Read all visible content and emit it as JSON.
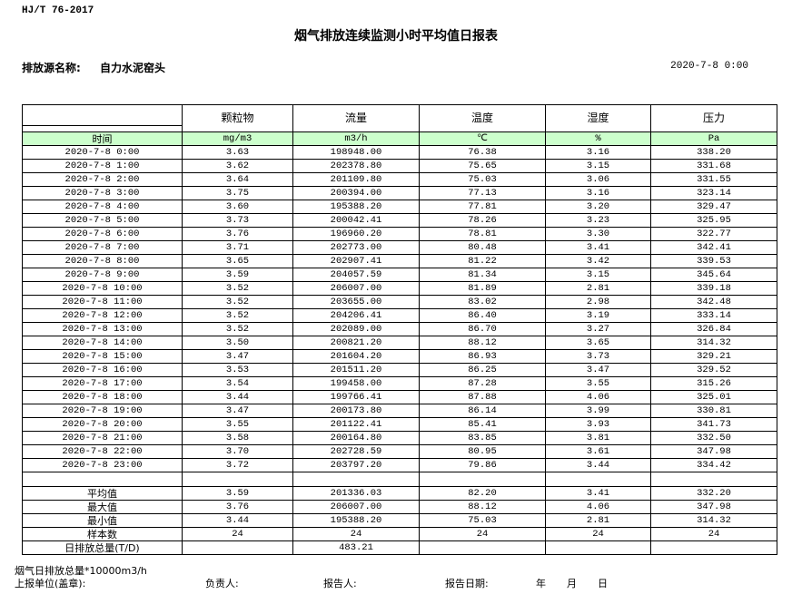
{
  "header": {
    "standard": "HJ/T  76-2017",
    "title": "烟气排放连续监测小时平均值日报表",
    "source_label": "排放源名称:",
    "source_value": "自力水泥窑头",
    "date": "2020-7-8 0:00"
  },
  "table": {
    "columns": [
      "颗粒物",
      "流量",
      "温度",
      "湿度",
      "压力"
    ],
    "time_label": "时间",
    "units": [
      "mg/m3",
      "m3/h",
      "℃",
      "%",
      "Pa"
    ],
    "rows": [
      [
        "2020-7-8 0:00",
        "3.63",
        "198948.00",
        "76.38",
        "3.16",
        "338.20"
      ],
      [
        "2020-7-8 1:00",
        "3.62",
        "202378.80",
        "75.65",
        "3.15",
        "331.68"
      ],
      [
        "2020-7-8 2:00",
        "3.64",
        "201109.80",
        "75.03",
        "3.06",
        "331.55"
      ],
      [
        "2020-7-8 3:00",
        "3.75",
        "200394.00",
        "77.13",
        "3.16",
        "323.14"
      ],
      [
        "2020-7-8 4:00",
        "3.60",
        "195388.20",
        "77.81",
        "3.20",
        "329.47"
      ],
      [
        "2020-7-8 5:00",
        "3.73",
        "200042.41",
        "78.26",
        "3.23",
        "325.95"
      ],
      [
        "2020-7-8 6:00",
        "3.76",
        "196960.20",
        "78.81",
        "3.30",
        "322.77"
      ],
      [
        "2020-7-8 7:00",
        "3.71",
        "202773.00",
        "80.48",
        "3.41",
        "342.41"
      ],
      [
        "2020-7-8 8:00",
        "3.65",
        "202907.41",
        "81.22",
        "3.42",
        "339.53"
      ],
      [
        "2020-7-8 9:00",
        "3.59",
        "204057.59",
        "81.34",
        "3.15",
        "345.64"
      ],
      [
        "2020-7-8 10:00",
        "3.52",
        "206007.00",
        "81.89",
        "2.81",
        "339.18"
      ],
      [
        "2020-7-8 11:00",
        "3.52",
        "203655.00",
        "83.02",
        "2.98",
        "342.48"
      ],
      [
        "2020-7-8 12:00",
        "3.52",
        "204206.41",
        "86.40",
        "3.19",
        "333.14"
      ],
      [
        "2020-7-8 13:00",
        "3.52",
        "202089.00",
        "86.70",
        "3.27",
        "326.84"
      ],
      [
        "2020-7-8 14:00",
        "3.50",
        "200821.20",
        "88.12",
        "3.65",
        "314.32"
      ],
      [
        "2020-7-8 15:00",
        "3.47",
        "201604.20",
        "86.93",
        "3.73",
        "329.21"
      ],
      [
        "2020-7-8 16:00",
        "3.53",
        "201511.20",
        "86.25",
        "3.47",
        "329.52"
      ],
      [
        "2020-7-8 17:00",
        "3.54",
        "199458.00",
        "87.28",
        "3.55",
        "315.26"
      ],
      [
        "2020-7-8 18:00",
        "3.44",
        "199766.41",
        "87.88",
        "4.06",
        "325.01"
      ],
      [
        "2020-7-8 19:00",
        "3.47",
        "200173.80",
        "86.14",
        "3.99",
        "330.81"
      ],
      [
        "2020-7-8 20:00",
        "3.55",
        "201122.41",
        "85.41",
        "3.93",
        "341.73"
      ],
      [
        "2020-7-8 21:00",
        "3.58",
        "200164.80",
        "83.85",
        "3.81",
        "332.50"
      ],
      [
        "2020-7-8 22:00",
        "3.70",
        "202728.59",
        "80.95",
        "3.61",
        "347.98"
      ],
      [
        "2020-7-8 23:00",
        "3.72",
        "203797.20",
        "79.86",
        "3.44",
        "334.42"
      ]
    ],
    "summary": [
      [
        "平均值",
        "3.59",
        "201336.03",
        "82.20",
        "3.41",
        "332.20"
      ],
      [
        "最大值",
        "3.76",
        "206007.00",
        "88.12",
        "4.06",
        "347.98"
      ],
      [
        "最小值",
        "3.44",
        "195388.20",
        "75.03",
        "2.81",
        "314.32"
      ],
      [
        "样本数",
        "24",
        "24",
        "24",
        "24",
        "24"
      ],
      [
        "日排放总量(T/D)",
        "",
        "483.21",
        "",
        "",
        ""
      ]
    ]
  },
  "footer": {
    "note": "烟气日排放总量*10000m3/h",
    "unit_label": "上报单位(盖章):",
    "manager_label": "负责人:",
    "reporter_label": "报告人:",
    "date_label": "报告日期:",
    "year": "年",
    "month": "月",
    "day": "日"
  }
}
